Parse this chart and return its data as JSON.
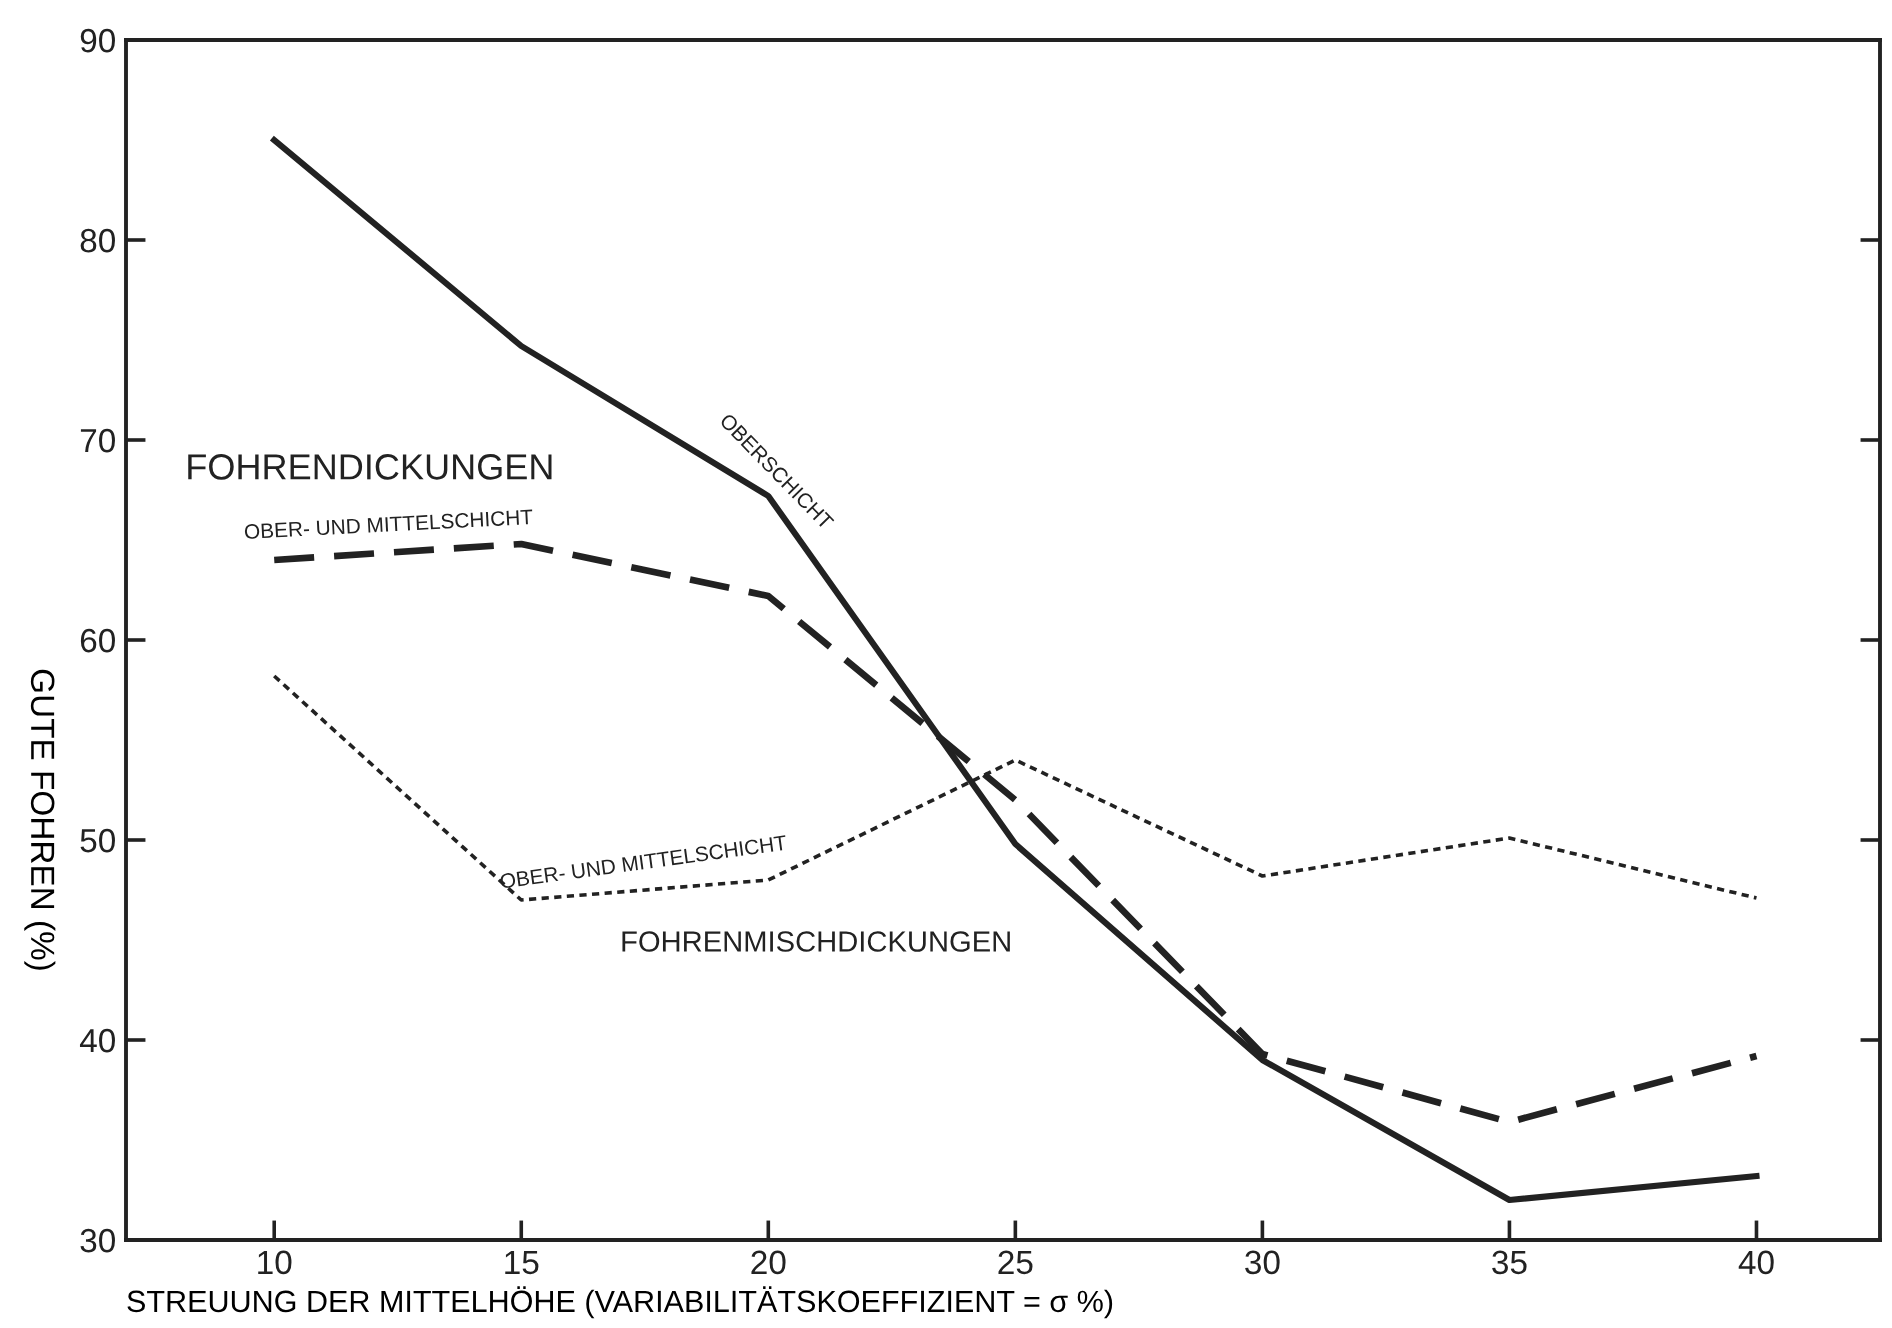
{
  "chart_data": {
    "type": "line",
    "xlabel": "STREUUNG DER MITTELHÖHE (VARIABILITÄTSKOEFFIZIENT = σ %)",
    "ylabel": "GUTE FOHREN (%)",
    "x": [
      10,
      15,
      20,
      25,
      30,
      35,
      40
    ],
    "series": [
      {
        "name": "OBERSCHICHT",
        "color": "#222222",
        "line_style": "solid",
        "values": [
          85,
          74.7,
          67.2,
          49.8,
          39,
          32,
          33.2
        ]
      },
      {
        "name": "OBER- UND MITTELSCHICHT",
        "color": "#222222",
        "line_style": "dashed",
        "values": [
          64,
          64.8,
          62.2,
          52,
          39.3,
          35.9,
          39.2
        ]
      },
      {
        "name": "OBER- UND MITTELSCHICHT",
        "color": "#222222",
        "line_style": "dotted",
        "values": [
          58.2,
          47,
          48,
          54,
          48.2,
          50.1,
          47.1
        ]
      }
    ],
    "annotations": [
      "FOHRENDICKUNGEN",
      "FOHRENMISCHDICKUNGEN"
    ],
    "xlim": [
      7,
      42.5
    ],
    "ylim": [
      30,
      90
    ],
    "xticks": [
      10,
      15,
      20,
      25,
      30,
      35,
      40
    ],
    "yticks": [
      30,
      40,
      50,
      60,
      70,
      80,
      90
    ],
    "tick_labels": "xy_left",
    "grid": false,
    "legend": false,
    "marker": "none"
  }
}
